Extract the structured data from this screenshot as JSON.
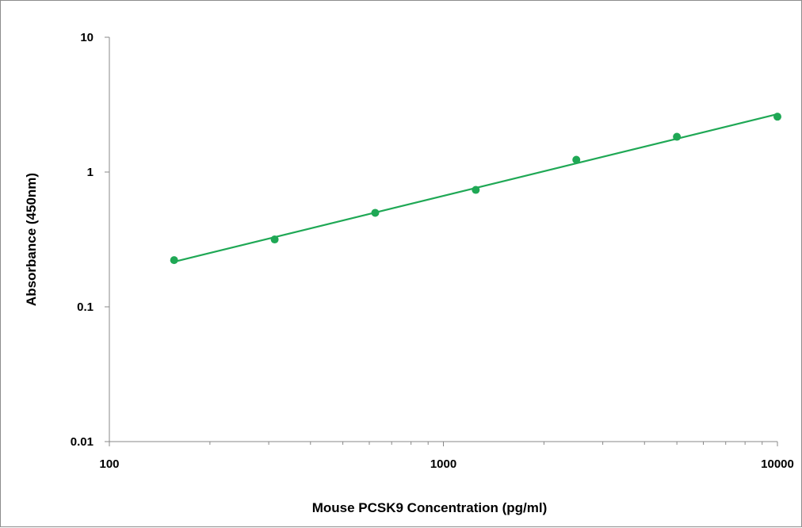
{
  "chart_data": {
    "type": "scatter",
    "title": "",
    "xlabel": "Mouse PCSK9 Concentration (pg/ml)",
    "ylabel": "Absorbance (450nm)",
    "xscale": "log",
    "yscale": "log",
    "xlim": [
      100,
      10000
    ],
    "ylim": [
      0.01,
      10
    ],
    "x_ticks": [
      100,
      1000,
      10000
    ],
    "x_tick_labels": [
      "100",
      "1000",
      "10000"
    ],
    "y_ticks": [
      0.01,
      0.1,
      1,
      10
    ],
    "y_tick_labels": [
      "0.01",
      "0.1",
      "1",
      "10"
    ],
    "grid": false,
    "legend": "none",
    "series": [
      {
        "x": [
          156.25,
          312.5,
          625,
          1250,
          2500,
          5000,
          10000
        ],
        "y": [
          0.222,
          0.316,
          0.498,
          0.737,
          1.234,
          1.826,
          2.575
        ],
        "color": "#1fa855",
        "trendline": "power"
      }
    ]
  }
}
